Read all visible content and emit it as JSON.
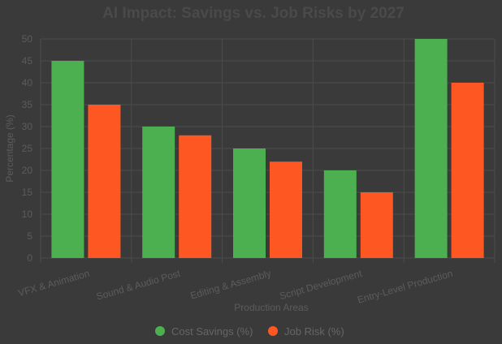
{
  "chart_data": {
    "type": "bar",
    "title": "AI Impact: Savings vs. Job Risks by 2027",
    "xlabel": "Production Areas",
    "ylabel": "Percentage (%)",
    "ylim": [
      0,
      50
    ],
    "yticks": [
      0,
      5,
      10,
      15,
      20,
      25,
      30,
      35,
      40,
      45,
      50
    ],
    "categories": [
      "VFX & Animation",
      "Sound & Audio Post",
      "Editing & Assembly",
      "Script Development",
      "Entry-Level Production"
    ],
    "series": [
      {
        "name": "Cost Savings (%)",
        "color": "#4caf50",
        "values": [
          45,
          30,
          25,
          20,
          50
        ]
      },
      {
        "name": "Job Risk (%)",
        "color": "#ff5722",
        "values": [
          35,
          28,
          22,
          15,
          40
        ]
      }
    ],
    "grid": true,
    "legend_position": "bottom"
  }
}
